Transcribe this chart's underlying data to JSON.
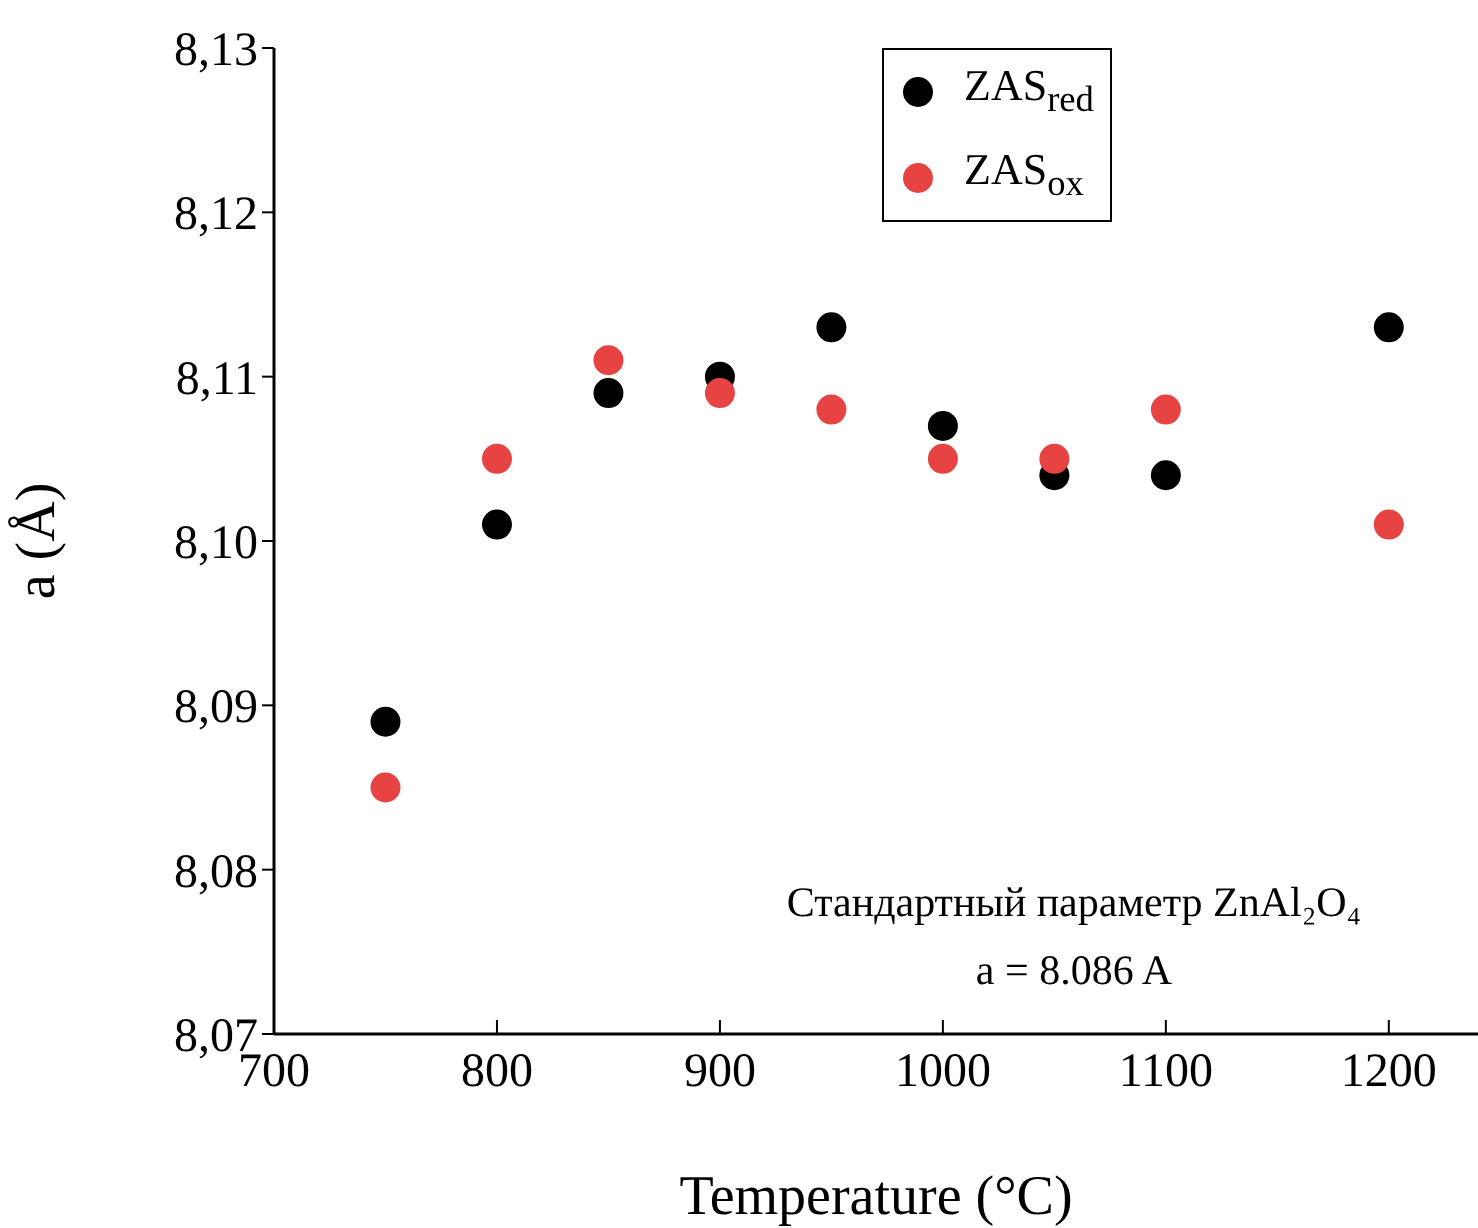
{
  "chart_data": {
    "type": "scatter",
    "xlabel": "Temperature (°C)",
    "ylabel": "a (Å)",
    "xlim": [
      700,
      1240
    ],
    "xticks": [
      700,
      800,
      900,
      1000,
      1100,
      1200
    ],
    "ylim": [
      8.07,
      8.13
    ],
    "yticks": [
      {
        "value": 8.07,
        "label": "8,07"
      },
      {
        "value": 8.08,
        "label": "8,08"
      },
      {
        "value": 8.09,
        "label": "8,09"
      },
      {
        "value": 8.1,
        "label": "8,10"
      },
      {
        "value": 8.11,
        "label": "8,11"
      },
      {
        "value": 8.12,
        "label": "8,12"
      },
      {
        "value": 8.13,
        "label": "8,13"
      }
    ],
    "x": [
      750,
      800,
      850,
      900,
      950,
      1000,
      1050,
      1100,
      1200
    ],
    "series": [
      {
        "name": "ZAS$_{red}$",
        "color": "#000000",
        "values": [
          8.089,
          8.101,
          8.109,
          8.11,
          8.113,
          8.107,
          8.104,
          8.104,
          8.113
        ]
      },
      {
        "name": "ZAS$_{ox}$",
        "color": "#e84343",
        "values": [
          8.085,
          8.105,
          8.111,
          8.109,
          8.108,
          8.105,
          8.105,
          8.108,
          8.101
        ]
      }
    ],
    "marker": "circle",
    "grid": false,
    "legend": "top",
    "annotations": [
      "Стандартный параметр ZnAl₂O₄",
      "a = 8.086 A"
    ]
  }
}
